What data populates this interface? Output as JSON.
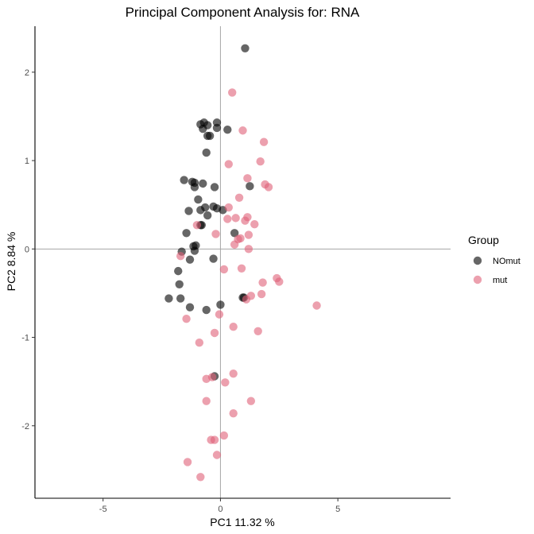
{
  "chart_data": {
    "type": "scatter",
    "title": "Principal Component Analysis for:  RNA",
    "xlabel": "PC1 11.32 %",
    "ylabel": "PC2 8.84 %",
    "xlim": [
      -7.9,
      9.8
    ],
    "ylim": [
      -2.82,
      2.52
    ],
    "x_ticks": [
      -5,
      0,
      5
    ],
    "y_ticks": [
      2,
      1,
      0,
      -1,
      -2
    ],
    "reference_lines": {
      "x": 0,
      "y": 0
    },
    "grid": false,
    "legend": {
      "title": "Group",
      "position": "right"
    },
    "series": [
      {
        "name": "NOmut",
        "color": "#000000",
        "points": [
          [
            1.05,
            2.27
          ],
          [
            -0.85,
            1.41
          ],
          [
            -0.7,
            1.43
          ],
          [
            -0.55,
            1.4
          ],
          [
            -0.15,
            1.43
          ],
          [
            0.3,
            1.35
          ],
          [
            -0.15,
            1.37
          ],
          [
            -0.55,
            1.28
          ],
          [
            -0.45,
            1.28
          ],
          [
            -0.75,
            1.36
          ],
          [
            -0.6,
            1.09
          ],
          [
            -1.55,
            0.78
          ],
          [
            -1.2,
            0.76
          ],
          [
            -1.1,
            0.75
          ],
          [
            -1.1,
            0.7
          ],
          [
            -0.75,
            0.74
          ],
          [
            -0.25,
            0.7
          ],
          [
            1.25,
            0.71
          ],
          [
            -0.95,
            0.56
          ],
          [
            -1.35,
            0.43
          ],
          [
            -0.85,
            0.44
          ],
          [
            -0.65,
            0.47
          ],
          [
            -0.3,
            0.48
          ],
          [
            -0.15,
            0.46
          ],
          [
            0.1,
            0.44
          ],
          [
            -0.55,
            0.38
          ],
          [
            -0.85,
            0.27
          ],
          [
            -0.8,
            0.27
          ],
          [
            -1.45,
            0.18
          ],
          [
            -1.15,
            0.03
          ],
          [
            -1.05,
            0.04
          ],
          [
            -1.65,
            -0.03
          ],
          [
            -1.1,
            -0.02
          ],
          [
            0.6,
            0.18
          ],
          [
            -0.3,
            -0.11
          ],
          [
            -1.3,
            -0.12
          ],
          [
            -1.8,
            -0.25
          ],
          [
            -1.75,
            -0.4
          ],
          [
            -2.2,
            -0.56
          ],
          [
            -1.7,
            -0.56
          ],
          [
            -1.3,
            -0.66
          ],
          [
            -0.6,
            -0.69
          ],
          [
            0.0,
            -0.63
          ],
          [
            0.95,
            -0.55
          ],
          [
            1.0,
            -0.55
          ],
          [
            -0.25,
            -1.44
          ]
        ]
      },
      {
        "name": "mut",
        "color": "#e06178",
        "points": [
          [
            0.5,
            1.77
          ],
          [
            0.95,
            1.34
          ],
          [
            1.85,
            1.21
          ],
          [
            0.35,
            0.96
          ],
          [
            1.7,
            0.99
          ],
          [
            1.15,
            0.8
          ],
          [
            1.9,
            0.73
          ],
          [
            2.05,
            0.7
          ],
          [
            0.8,
            0.58
          ],
          [
            0.35,
            0.47
          ],
          [
            0.65,
            0.35
          ],
          [
            1.15,
            0.36
          ],
          [
            0.3,
            0.34
          ],
          [
            1.05,
            0.32
          ],
          [
            1.45,
            0.28
          ],
          [
            -1.0,
            0.27
          ],
          [
            -0.2,
            0.17
          ],
          [
            0.85,
            0.12
          ],
          [
            0.75,
            0.11
          ],
          [
            1.2,
            0.16
          ],
          [
            0.6,
            0.05
          ],
          [
            1.2,
            0.0
          ],
          [
            -1.7,
            -0.08
          ],
          [
            0.15,
            -0.23
          ],
          [
            0.9,
            -0.22
          ],
          [
            1.8,
            -0.38
          ],
          [
            2.4,
            -0.33
          ],
          [
            2.5,
            -0.37
          ],
          [
            1.3,
            -0.53
          ],
          [
            1.75,
            -0.51
          ],
          [
            1.1,
            -0.57
          ],
          [
            4.1,
            -0.64
          ],
          [
            -1.45,
            -0.79
          ],
          [
            -0.05,
            -0.74
          ],
          [
            0.55,
            -0.88
          ],
          [
            1.6,
            -0.93
          ],
          [
            -0.25,
            -0.95
          ],
          [
            -0.9,
            -1.06
          ],
          [
            0.55,
            -1.41
          ],
          [
            -0.35,
            -1.45
          ],
          [
            -0.6,
            -1.47
          ],
          [
            0.2,
            -1.51
          ],
          [
            1.3,
            -1.72
          ],
          [
            -0.6,
            -1.72
          ],
          [
            0.55,
            -1.86
          ],
          [
            0.15,
            -2.11
          ],
          [
            -0.4,
            -2.16
          ],
          [
            -0.25,
            -2.16
          ],
          [
            -0.15,
            -2.33
          ],
          [
            -1.4,
            -2.41
          ],
          [
            -0.85,
            -2.58
          ]
        ]
      }
    ]
  }
}
